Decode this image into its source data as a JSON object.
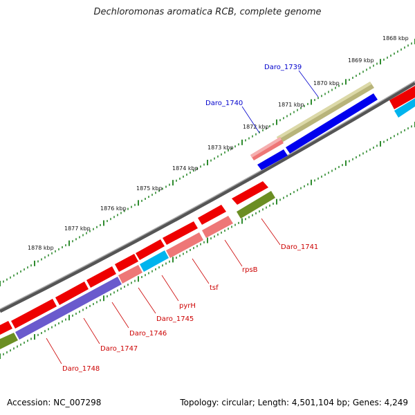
{
  "title": "Dechloromonas aromatica RCB, complete genome",
  "accession": "Accession: NC_007298",
  "summary": "Topology: circular; Length: 4,501,104 bp; Genes: 4,249",
  "colors": {
    "red": "#ee0000",
    "pink": "#ee7777",
    "blue": "#0000ee",
    "cyan": "#00b4ee",
    "olive": "#6b8e23",
    "khaki": "#b8b47a",
    "purple": "#6a5acd",
    "backbone": "#808080",
    "tick": "#2e8b2e"
  },
  "scale_labels": [
    "1868 kbp",
    "1869 kbp",
    "1870 kbp",
    "1871 kbp",
    "1872 kbp",
    "1873 kbp",
    "1874 kbp",
    "1875 kbp",
    "1876 kbp",
    "1877 kbp",
    "1878 kbp"
  ],
  "gene_labels_top": [
    {
      "text": "Daro_1739",
      "color": "blue"
    },
    {
      "text": "Daro_1740",
      "color": "blue"
    }
  ],
  "gene_labels_bottom": [
    {
      "text": "Daro_1741"
    },
    {
      "text": "rpsB"
    },
    {
      "text": "tsf"
    },
    {
      "text": "pyrH"
    },
    {
      "text": "Daro_1745"
    },
    {
      "text": "Daro_1746"
    },
    {
      "text": "Daro_1747"
    },
    {
      "text": "Daro_1748"
    }
  ]
}
